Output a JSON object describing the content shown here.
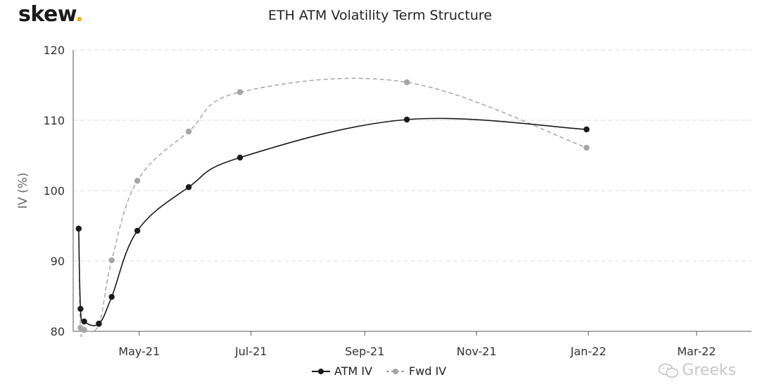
{
  "brand": {
    "name": "skew",
    "dot": "."
  },
  "watermark": {
    "text": "Greeks",
    "icon": "wechat-icon"
  },
  "colors": {
    "atm": "#1a1a1a",
    "fwd": "#a6a6a6",
    "grid": "#dddddd",
    "accent": "#f2a900"
  },
  "chart_data": {
    "type": "line",
    "title": "ETH ATM Volatility Term Structure",
    "xlabel": "",
    "ylabel": "IV (%)",
    "ylim": [
      80,
      120
    ],
    "yticks": [
      80,
      90,
      100,
      110,
      120
    ],
    "xlim": [
      "2021-03-26",
      "2022-03-31"
    ],
    "xticks": [
      {
        "date": "2021-05-01",
        "label": "May-21"
      },
      {
        "date": "2021-07-01",
        "label": "Jul-21"
      },
      {
        "date": "2021-09-01",
        "label": "Sep-21"
      },
      {
        "date": "2021-11-01",
        "label": "Nov-21"
      },
      {
        "date": "2022-01-01",
        "label": "Jan-22"
      },
      {
        "date": "2022-03-01",
        "label": "Mar-22"
      }
    ],
    "grid": "horizontal-dashed",
    "legend": "bottom-center",
    "series": [
      {
        "name": "ATM IV",
        "style": "solid",
        "points": [
          {
            "x": "2021-03-29",
            "y": 94.6
          },
          {
            "x": "2021-03-30",
            "y": 83.2
          },
          {
            "x": "2021-04-01",
            "y": 81.4
          },
          {
            "x": "2021-04-09",
            "y": 81.1
          },
          {
            "x": "2021-04-16",
            "y": 84.9
          },
          {
            "x": "2021-04-30",
            "y": 94.3
          },
          {
            "x": "2021-05-28",
            "y": 100.5
          },
          {
            "x": "2021-06-25",
            "y": 104.7
          },
          {
            "x": "2021-09-24",
            "y": 110.1
          },
          {
            "x": "2021-12-31",
            "y": 108.7
          }
        ]
      },
      {
        "name": "Fwd IV",
        "style": "dashed",
        "points": [
          {
            "x": "2021-03-29",
            "y": 94.6
          },
          {
            "x": "2021-03-30",
            "y": 80.5
          },
          {
            "x": "2021-04-01",
            "y": 80.2
          },
          {
            "x": "2021-04-09",
            "y": 81.0
          },
          {
            "x": "2021-04-16",
            "y": 90.1
          },
          {
            "x": "2021-04-30",
            "y": 101.4
          },
          {
            "x": "2021-05-28",
            "y": 108.4
          },
          {
            "x": "2021-06-25",
            "y": 114.0
          },
          {
            "x": "2021-09-24",
            "y": 115.4
          },
          {
            "x": "2021-12-31",
            "y": 106.1
          }
        ]
      }
    ]
  }
}
